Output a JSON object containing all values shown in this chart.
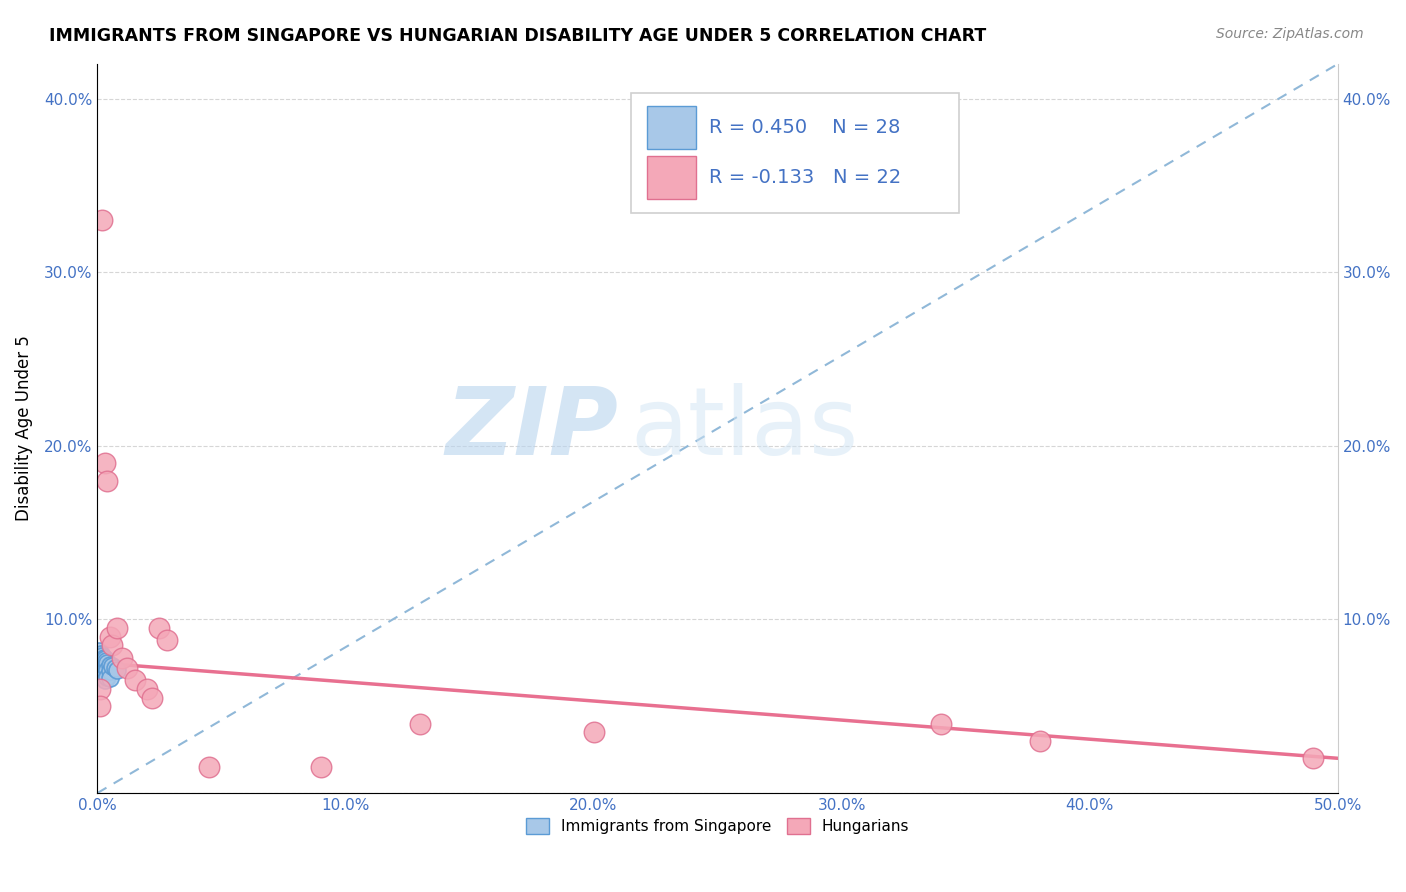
{
  "title": "IMMIGRANTS FROM SINGAPORE VS HUNGARIAN DISABILITY AGE UNDER 5 CORRELATION CHART",
  "source": "Source: ZipAtlas.com",
  "ylabel": "Disability Age Under 5",
  "xlim": [
    0.0,
    0.5
  ],
  "ylim": [
    0.0,
    0.42
  ],
  "xtick_labels": [
    "0.0%",
    "10.0%",
    "20.0%",
    "30.0%",
    "40.0%",
    "50.0%"
  ],
  "xtick_vals": [
    0.0,
    0.1,
    0.2,
    0.3,
    0.4,
    0.5
  ],
  "ytick_labels": [
    "",
    "10.0%",
    "20.0%",
    "30.0%",
    "40.0%"
  ],
  "ytick_vals": [
    0.0,
    0.1,
    0.2,
    0.3,
    0.4
  ],
  "singapore_color": "#a8c8e8",
  "hungarian_color": "#f4a8b8",
  "singapore_edge": "#5b9bd5",
  "hungarian_edge": "#e07090",
  "legend_r1": "R = 0.450",
  "legend_n1": "N = 28",
  "legend_r2": "R = -0.133",
  "legend_n2": "N = 22",
  "r_color": "#4472c4",
  "watermark_zip": "ZIP",
  "watermark_atlas": "atlas",
  "sg_line_x": [
    0.0,
    0.5
  ],
  "sg_line_y": [
    0.0,
    0.42
  ],
  "hu_line_x": [
    0.0,
    0.5
  ],
  "hu_line_y": [
    0.075,
    0.02
  ],
  "singapore_points": [
    [
      0.0005,
      0.082
    ],
    [
      0.001,
      0.078
    ],
    [
      0.001,
      0.074
    ],
    [
      0.001,
      0.07
    ],
    [
      0.0015,
      0.08
    ],
    [
      0.0015,
      0.076
    ],
    [
      0.0015,
      0.072
    ],
    [
      0.002,
      0.079
    ],
    [
      0.002,
      0.075
    ],
    [
      0.002,
      0.071
    ],
    [
      0.002,
      0.067
    ],
    [
      0.0025,
      0.078
    ],
    [
      0.0025,
      0.074
    ],
    [
      0.003,
      0.077
    ],
    [
      0.003,
      0.073
    ],
    [
      0.003,
      0.069
    ],
    [
      0.003,
      0.065
    ],
    [
      0.0035,
      0.076
    ],
    [
      0.0035,
      0.072
    ],
    [
      0.004,
      0.075
    ],
    [
      0.004,
      0.071
    ],
    [
      0.004,
      0.067
    ],
    [
      0.005,
      0.074
    ],
    [
      0.005,
      0.07
    ],
    [
      0.005,
      0.066
    ],
    [
      0.006,
      0.073
    ],
    [
      0.007,
      0.072
    ],
    [
      0.008,
      0.071
    ]
  ],
  "hungarian_points": [
    [
      0.001,
      0.06
    ],
    [
      0.001,
      0.05
    ],
    [
      0.002,
      0.33
    ],
    [
      0.003,
      0.19
    ],
    [
      0.004,
      0.18
    ],
    [
      0.005,
      0.09
    ],
    [
      0.006,
      0.085
    ],
    [
      0.008,
      0.095
    ],
    [
      0.01,
      0.078
    ],
    [
      0.012,
      0.072
    ],
    [
      0.015,
      0.065
    ],
    [
      0.02,
      0.06
    ],
    [
      0.022,
      0.055
    ],
    [
      0.025,
      0.095
    ],
    [
      0.028,
      0.088
    ],
    [
      0.045,
      0.015
    ],
    [
      0.09,
      0.015
    ],
    [
      0.13,
      0.04
    ],
    [
      0.2,
      0.035
    ],
    [
      0.34,
      0.04
    ],
    [
      0.38,
      0.03
    ],
    [
      0.49,
      0.02
    ]
  ]
}
